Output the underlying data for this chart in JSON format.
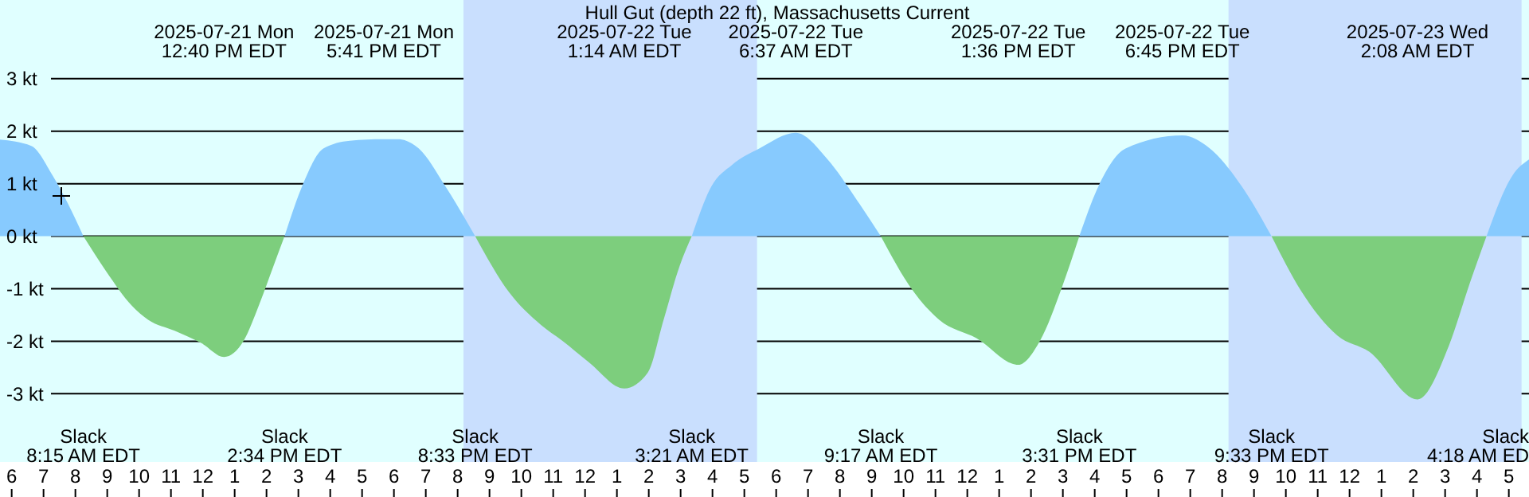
{
  "chart_data": {
    "type": "area",
    "title": "Hull Gut (depth 22 ft), Massachusetts Current",
    "xlim": [
      "2025-07-21T05:38",
      "2025-07-23T05:38"
    ],
    "ylim": [
      -4.3,
      4.5
    ],
    "yticks": [
      {
        "value": 3,
        "label": "3 kt"
      },
      {
        "value": 2,
        "label": "2 kt"
      },
      {
        "value": 1,
        "label": "1 kt"
      },
      {
        "value": 0,
        "label": "0 kt"
      },
      {
        "value": -1,
        "label": "-1 kt"
      },
      {
        "value": -2,
        "label": "-2 kt"
      },
      {
        "value": -3,
        "label": "-3 kt"
      }
    ],
    "xticks": [
      {
        "value": "2025-07-21T06:00",
        "label": "6"
      },
      {
        "value": "2025-07-21T07:00",
        "label": "7"
      },
      {
        "value": "2025-07-21T08:00",
        "label": "8"
      },
      {
        "value": "2025-07-21T09:00",
        "label": "9"
      },
      {
        "value": "2025-07-21T10:00",
        "label": "10"
      },
      {
        "value": "2025-07-21T11:00",
        "label": "11"
      },
      {
        "value": "2025-07-21T12:00",
        "label": "12"
      },
      {
        "value": "2025-07-21T13:00",
        "label": "1"
      },
      {
        "value": "2025-07-21T14:00",
        "label": "2"
      },
      {
        "value": "2025-07-21T15:00",
        "label": "3"
      },
      {
        "value": "2025-07-21T16:00",
        "label": "4"
      },
      {
        "value": "2025-07-21T17:00",
        "label": "5"
      },
      {
        "value": "2025-07-21T18:00",
        "label": "6"
      },
      {
        "value": "2025-07-21T19:00",
        "label": "7"
      },
      {
        "value": "2025-07-21T20:00",
        "label": "8"
      },
      {
        "value": "2025-07-21T21:00",
        "label": "9"
      },
      {
        "value": "2025-07-21T22:00",
        "label": "10"
      },
      {
        "value": "2025-07-21T23:00",
        "label": "11"
      },
      {
        "value": "2025-07-22T00:00",
        "label": "12"
      },
      {
        "value": "2025-07-22T01:00",
        "label": "1"
      },
      {
        "value": "2025-07-22T02:00",
        "label": "2"
      },
      {
        "value": "2025-07-22T03:00",
        "label": "3"
      },
      {
        "value": "2025-07-22T04:00",
        "label": "4"
      },
      {
        "value": "2025-07-22T05:00",
        "label": "5"
      },
      {
        "value": "2025-07-22T06:00",
        "label": "6"
      },
      {
        "value": "2025-07-22T07:00",
        "label": "7"
      },
      {
        "value": "2025-07-22T08:00",
        "label": "8"
      },
      {
        "value": "2025-07-22T09:00",
        "label": "9"
      },
      {
        "value": "2025-07-22T10:00",
        "label": "10"
      },
      {
        "value": "2025-07-22T11:00",
        "label": "11"
      },
      {
        "value": "2025-07-22T12:00",
        "label": "12"
      },
      {
        "value": "2025-07-22T13:00",
        "label": "1"
      },
      {
        "value": "2025-07-22T14:00",
        "label": "2"
      },
      {
        "value": "2025-07-22T15:00",
        "label": "3"
      },
      {
        "value": "2025-07-22T16:00",
        "label": "4"
      },
      {
        "value": "2025-07-22T17:00",
        "label": "5"
      },
      {
        "value": "2025-07-22T18:00",
        "label": "6"
      },
      {
        "value": "2025-07-22T19:00",
        "label": "7"
      },
      {
        "value": "2025-07-22T20:00",
        "label": "8"
      },
      {
        "value": "2025-07-22T21:00",
        "label": "9"
      },
      {
        "value": "2025-07-22T22:00",
        "label": "10"
      },
      {
        "value": "2025-07-22T23:00",
        "label": "11"
      },
      {
        "value": "2025-07-23T00:00",
        "label": "12"
      },
      {
        "value": "2025-07-23T01:00",
        "label": "1"
      },
      {
        "value": "2025-07-23T02:00",
        "label": "2"
      },
      {
        "value": "2025-07-23T03:00",
        "label": "3"
      },
      {
        "value": "2025-07-23T04:00",
        "label": "4"
      },
      {
        "value": "2025-07-23T05:00",
        "label": "5"
      }
    ],
    "grid": "y",
    "legend": false,
    "series": [
      {
        "color": "#87cafe",
        "x": [
          "2025-07-21T05:38",
          "2025-07-21T06:37",
          "2025-07-21T07:17",
          "2025-07-21T07:47",
          "2025-07-21T08:15"
        ],
        "values": [
          1.84,
          1.72,
          1.16,
          0.6,
          0
        ]
      },
      {
        "color": "#7dce7d",
        "x": [
          "2025-07-21T08:15",
          "2025-07-21T08:58",
          "2025-07-21T09:47",
          "2025-07-21T10:17",
          "2025-07-21T11:07",
          "2025-07-21T11:58",
          "2025-07-21T12:40",
          "2025-07-21T13:17",
          "2025-07-21T13:47",
          "2025-07-21T14:13",
          "2025-07-21T14:34"
        ],
        "values": [
          0,
          -0.67,
          -1.33,
          -1.59,
          -1.8,
          -2.04,
          -2.3,
          -1.99,
          -1.28,
          -0.57,
          0
        ]
      },
      {
        "color": "#87cafe",
        "x": [
          "2025-07-21T14:34",
          "2025-07-21T15:07",
          "2025-07-21T15:47",
          "2025-07-21T16:37",
          "2025-07-21T17:41",
          "2025-07-21T18:07",
          "2025-07-21T18:47",
          "2025-07-21T19:37",
          "2025-07-21T20:33"
        ],
        "values": [
          0,
          0.95,
          1.67,
          1.82,
          1.85,
          1.85,
          1.67,
          0.95,
          0
        ]
      },
      {
        "color": "#7dce7d",
        "x": [
          "2025-07-21T20:33",
          "2025-07-21T21:37",
          "2025-07-21T22:37",
          "2025-07-21T23:17",
          "2025-07-22T00:07",
          "2025-07-22T01:14",
          "2025-07-22T01:58",
          "2025-07-22T02:28",
          "2025-07-22T02:58",
          "2025-07-22T03:21"
        ],
        "values": [
          0,
          -1.07,
          -1.69,
          -1.99,
          -2.4,
          -2.9,
          -2.6,
          -1.59,
          -0.57,
          0
        ]
      },
      {
        "color": "#87cafe",
        "x": [
          "2025-07-22T03:21",
          "2025-07-22T03:58",
          "2025-07-22T04:37",
          "2025-07-22T05:28",
          "2025-07-22T06:37",
          "2025-07-22T07:37",
          "2025-07-22T08:28",
          "2025-07-22T09:17"
        ],
        "values": [
          0,
          0.95,
          1.36,
          1.67,
          1.97,
          1.46,
          0.75,
          0
        ]
      },
      {
        "color": "#7dce7d",
        "x": [
          "2025-07-22T09:17",
          "2025-07-22T10:17",
          "2025-07-22T11:07",
          "2025-07-22T12:17",
          "2025-07-22T13:36",
          "2025-07-22T14:17",
          "2025-07-22T14:58",
          "2025-07-22T15:31"
        ],
        "values": [
          0,
          -1.03,
          -1.59,
          -1.94,
          -2.45,
          -1.99,
          -0.98,
          0
        ]
      },
      {
        "color": "#87cafe",
        "x": [
          "2025-07-22T15:31",
          "2025-07-22T16:07",
          "2025-07-22T16:58",
          "2025-07-22T18:45",
          "2025-07-22T19:37",
          "2025-07-22T20:37",
          "2025-07-22T21:33"
        ],
        "values": [
          0,
          0.95,
          1.67,
          1.92,
          1.67,
          0.95,
          0
        ]
      },
      {
        "color": "#7dce7d",
        "x": [
          "2025-07-22T21:33",
          "2025-07-22T22:28",
          "2025-07-22T23:37",
          "2025-07-23T00:37",
          "2025-07-23T02:08",
          "2025-07-23T03:07",
          "2025-07-23T03:47",
          "2025-07-23T04:18"
        ],
        "values": [
          0,
          -1.03,
          -1.89,
          -2.2,
          -3.11,
          -2.09,
          -0.88,
          0
        ]
      },
      {
        "color": "#87cafe",
        "x": [
          "2025-07-23T04:18",
          "2025-07-23T05:07",
          "2025-07-23T05:38"
        ],
        "values": [
          0,
          1.16,
          1.46
        ]
      }
    ],
    "bands": [
      {
        "axis": "x",
        "from": "2025-07-21T20:11",
        "to": "2025-07-22T05:24",
        "color": "#c9dffe"
      },
      {
        "axis": "x",
        "from": "2025-07-22T20:12",
        "to": "2025-07-23T05:24",
        "color": "#c9dffe"
      }
    ],
    "annotations": [
      "2025-07-21 Mon\n12:40 PM EDT",
      "2025-07-21 Mon\n5:41 PM EDT",
      "2025-07-22 Tue\n1:14 AM EDT",
      "2025-07-22 Tue\n6:37 AM EDT",
      "2025-07-22 Tue\n1:36 PM EDT",
      "2025-07-22 Tue\n6:45 PM EDT",
      "2025-07-23 Wed\n2:08 AM EDT",
      "Slack\n8:15 AM EDT",
      "Slack\n2:34 PM EDT",
      "Slack\n8:33 PM EDT",
      "Slack\n3:21 AM EDT",
      "Slack\n9:17 AM EDT",
      "Slack\n3:31 PM EDT",
      "Slack\n9:33 PM EDT",
      "Slack\n4:18 AM ED"
    ]
  }
}
